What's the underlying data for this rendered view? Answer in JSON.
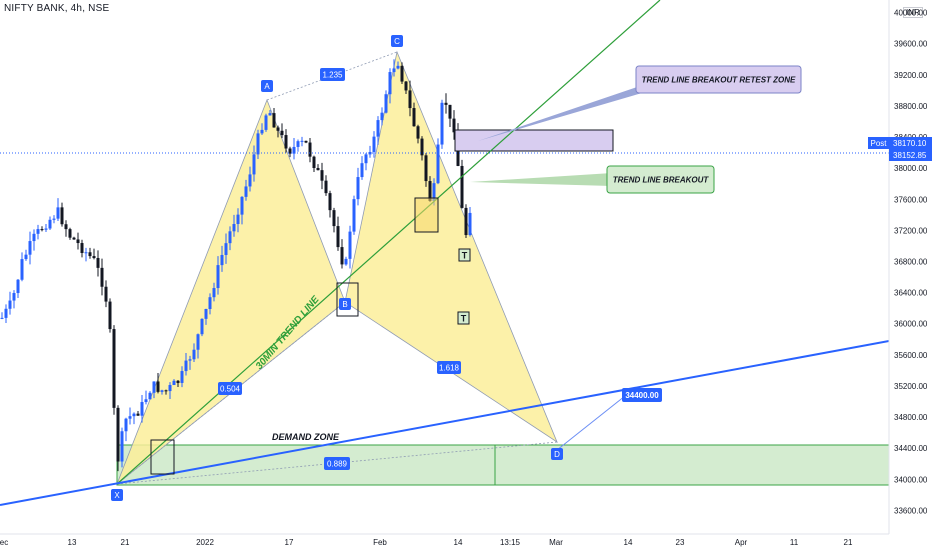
{
  "header": {
    "symbol_line": "NIFTY BANK, 4h, NSE",
    "currency": "INR"
  },
  "colors": {
    "up": "#2962ff",
    "down": "#131722",
    "harmonic_fill": "#fbef9a",
    "trend_green": "#2e9f3a",
    "trend_blue": "#2962ff",
    "zone_green": "#d4ecd0",
    "zone_purple": "#d8cdf0",
    "price_line": "#2962ff"
  },
  "chart_data": {
    "type": "candlestick",
    "title": "NIFTY BANK, 4h, NSE",
    "yrange": [
      33400,
      40200
    ],
    "y_ticks": [
      33600,
      34000,
      34400,
      34800,
      35200,
      35600,
      36000,
      36400,
      36800,
      37200,
      37600,
      38000,
      38400,
      38800,
      39200,
      39600,
      40000
    ],
    "x_ticks": [
      "ec",
      "13",
      "21",
      "2022",
      "17",
      "Feb",
      "14",
      "13:15",
      "Mar",
      "14",
      "23",
      "Apr",
      "11",
      "21"
    ],
    "price_labels": [
      {
        "text": "Post",
        "value": 38170.1
      },
      {
        "text": "38170.10",
        "value": 38170.1
      },
      {
        "text": "38152.85",
        "value": 38152.85
      }
    ],
    "current_price": 38170.1,
    "harmonic_points": [
      {
        "label": "X",
        "value": 34000
      },
      {
        "label": "A",
        "value": 38850
      },
      {
        "label": "B",
        "value": 36400
      },
      {
        "label": "C",
        "value": 39450
      },
      {
        "label": "D",
        "value": 34500
      }
    ],
    "ratios": [
      "1.235",
      "0.504",
      "1.618",
      "0.889"
    ],
    "target_label": "34400.00",
    "annotations": [
      "TREND LINE BREAKOUT RETEST ZONE",
      "TREND LINE BREAKOUT",
      "30MIN TREND LINE",
      "DEMAND ZONE"
    ],
    "markers": [
      "T",
      "T"
    ],
    "zones": [
      {
        "name": "DEMAND ZONE",
        "from": 34000,
        "to": 34520
      },
      {
        "name": "TREND LINE BREAKOUT RETEST ZONE",
        "from": 38150,
        "to": 38460
      }
    ]
  }
}
